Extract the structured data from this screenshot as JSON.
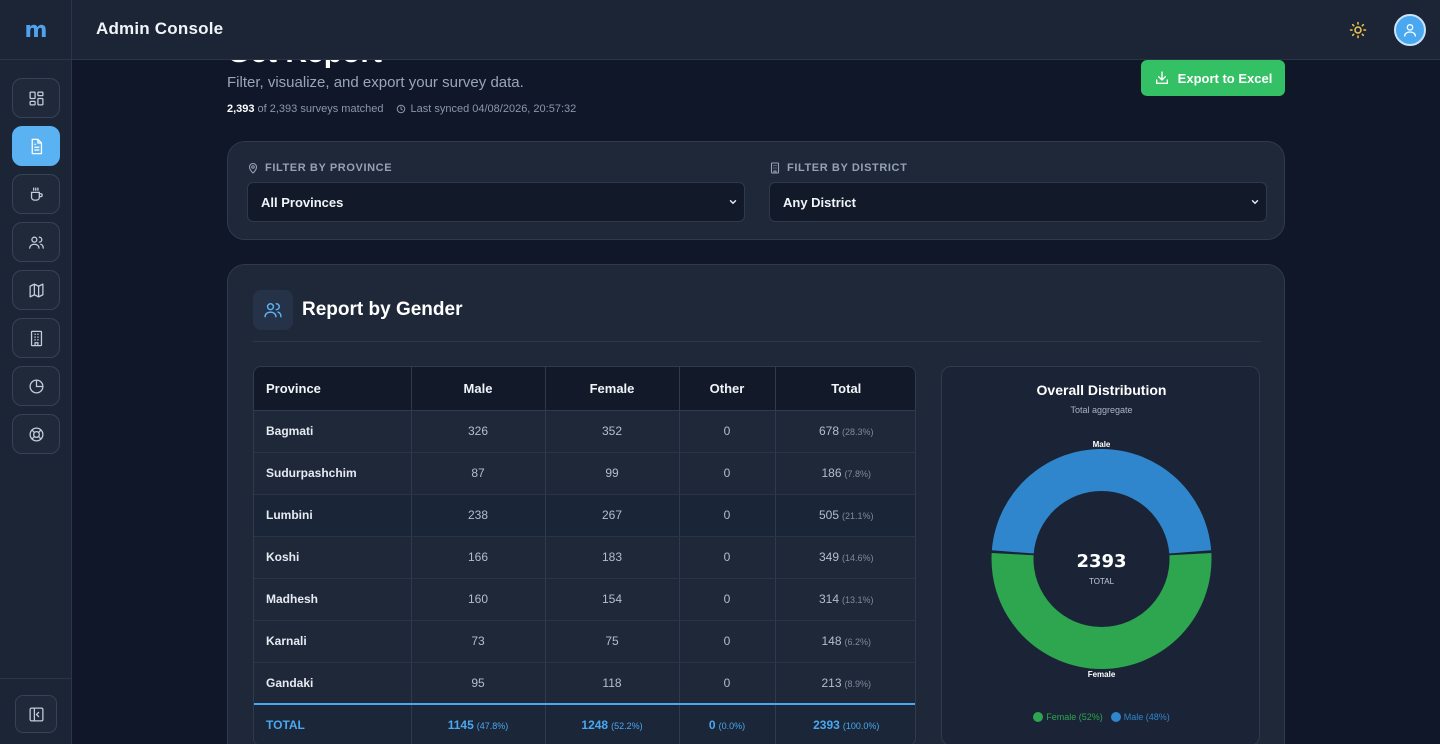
{
  "brand": {
    "logo_text": "m"
  },
  "header": {
    "title": "Admin Console",
    "theme_icon": "sun-icon",
    "avatar_icon": "user-icon"
  },
  "sidebar": {
    "items": [
      {
        "icon": "dashboard-icon",
        "active": false
      },
      {
        "icon": "report-document-icon",
        "active": true
      },
      {
        "icon": "cup-icon",
        "active": false
      },
      {
        "icon": "users-icon",
        "active": false
      },
      {
        "icon": "map-icon",
        "active": false
      },
      {
        "icon": "building-icon",
        "active": false
      },
      {
        "icon": "pie-chart-icon",
        "active": false
      },
      {
        "icon": "lifebuoy-icon",
        "active": false
      }
    ],
    "collapse_icon": "sidebar-collapse-icon"
  },
  "page": {
    "title": "Get Report",
    "subtitle": "Filter, visualize, and export your survey data.",
    "matched_count": "2,393",
    "matched_text": "of 2,393 surveys matched",
    "last_synced": "Last synced 04/08/2026, 20:57:32",
    "export_label": "Export to Excel"
  },
  "filters": {
    "province_label": "FILTER BY PROVINCE",
    "province_value": "All Provinces",
    "district_label": "FILTER BY DISTRICT",
    "district_value": "Any District"
  },
  "report": {
    "title": "Report by Gender",
    "columns": [
      "Province",
      "Male",
      "Female",
      "Other",
      "Total"
    ],
    "rows": [
      {
        "province": "Bagmati",
        "male": "326",
        "female": "352",
        "other": "0",
        "total": "678",
        "pct": "(28.3%)"
      },
      {
        "province": "Sudurpashchim",
        "male": "87",
        "female": "99",
        "other": "0",
        "total": "186",
        "pct": "(7.8%)"
      },
      {
        "province": "Lumbini",
        "male": "238",
        "female": "267",
        "other": "0",
        "total": "505",
        "pct": "(21.1%)"
      },
      {
        "province": "Koshi",
        "male": "166",
        "female": "183",
        "other": "0",
        "total": "349",
        "pct": "(14.6%)"
      },
      {
        "province": "Madhesh",
        "male": "160",
        "female": "154",
        "other": "0",
        "total": "314",
        "pct": "(13.1%)"
      },
      {
        "province": "Karnali",
        "male": "73",
        "female": "75",
        "other": "0",
        "total": "148",
        "pct": "(6.2%)"
      },
      {
        "province": "Gandaki",
        "male": "95",
        "female": "118",
        "other": "0",
        "total": "213",
        "pct": "(8.9%)"
      }
    ],
    "total": {
      "label": "TOTAL",
      "male": "1145",
      "male_pct": "(47.8%)",
      "female": "1248",
      "female_pct": "(52.2%)",
      "other": "0",
      "other_pct": "(0.0%)",
      "total": "2393",
      "total_pct": "(100.0%)"
    }
  },
  "chart_data": {
    "type": "pie",
    "title": "Overall Distribution",
    "subtitle": "Total aggregate",
    "center_value": "2393",
    "center_label": "TOTAL",
    "slices": [
      {
        "label": "Male",
        "value": 1145,
        "color": "#2f86cd",
        "legend": "Male (48%)"
      },
      {
        "label": "Female",
        "value": 1248,
        "color": "#2ea54f",
        "legend": "Female (52%)"
      }
    ],
    "legend_order": [
      "Female",
      "Male"
    ],
    "legend_position": "bottom"
  },
  "colors": {
    "accent": "#4aa8f0",
    "export": "#34c065",
    "male": "#2f86cd",
    "female": "#2ea54f"
  }
}
